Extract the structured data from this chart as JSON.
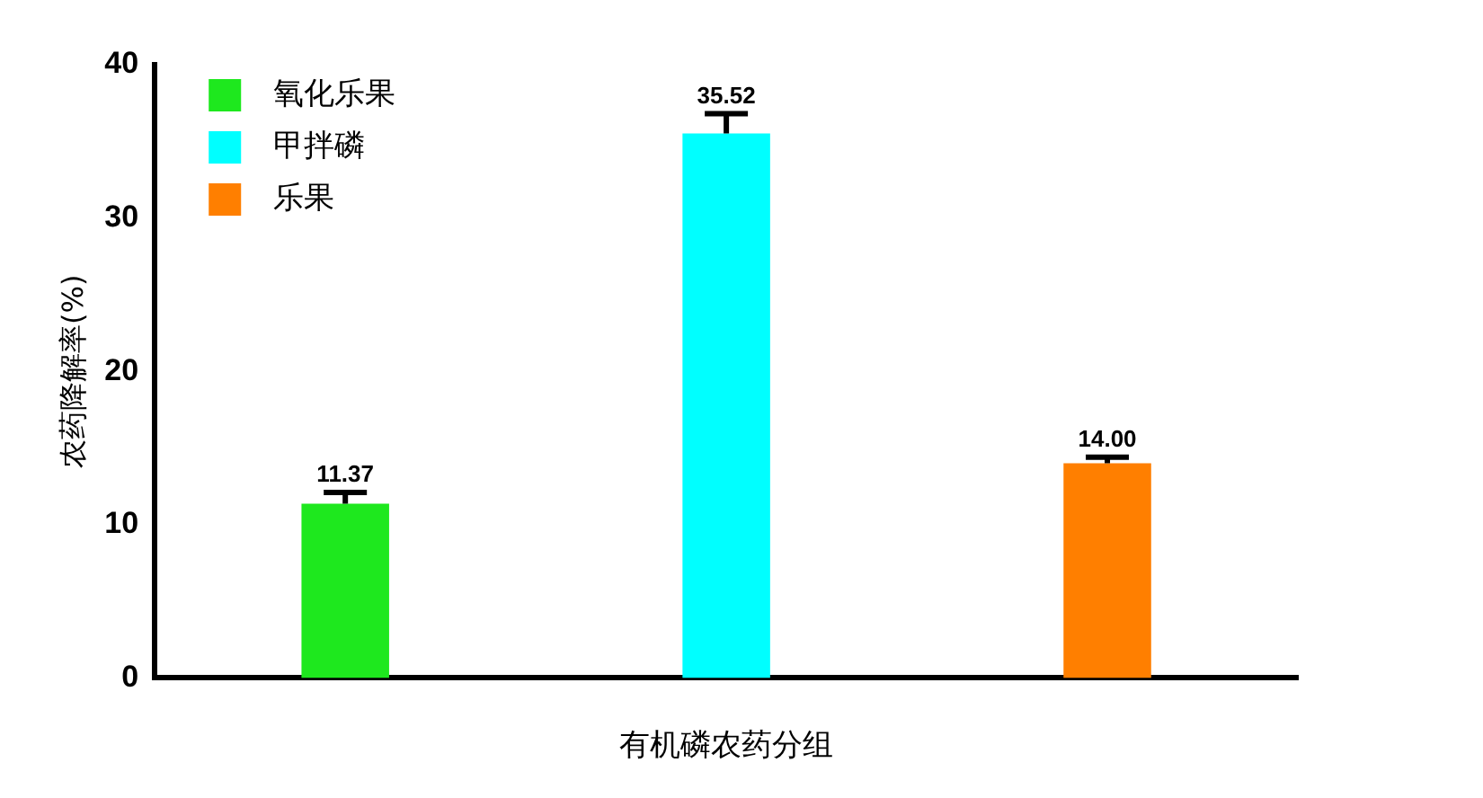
{
  "chart_data": {
    "type": "bar",
    "xlabel": "有机磷农药分组",
    "ylabel": "农药降解率(%)",
    "categories": [
      null,
      null,
      null
    ],
    "series": [
      {
        "name": "氧化乐果",
        "color": "#1ee81e",
        "values": [
          11.37,
          null,
          null
        ],
        "value_labels": [
          "11.37",
          null,
          null
        ],
        "errors": [
          [
            11.37,
            12.1
          ],
          null,
          null
        ]
      },
      {
        "name": "甲拌磷",
        "color": "#00ffff",
        "values": [
          null,
          35.52,
          null
        ],
        "value_labels": [
          null,
          "35.52",
          null
        ],
        "errors": [
          null,
          [
            35.52,
            36.8
          ],
          null
        ]
      },
      {
        "name": "乐果",
        "color": "#ff7f00",
        "values": [
          null,
          null,
          14.0
        ],
        "value_labels": [
          null,
          null,
          "14.00"
        ],
        "errors": [
          null,
          null,
          [
            14.0,
            14.4
          ]
        ]
      }
    ],
    "ylim": [
      0,
      40
    ],
    "yticks": [
      0,
      10,
      20,
      30,
      40
    ],
    "grid": false,
    "legend": "top left"
  }
}
